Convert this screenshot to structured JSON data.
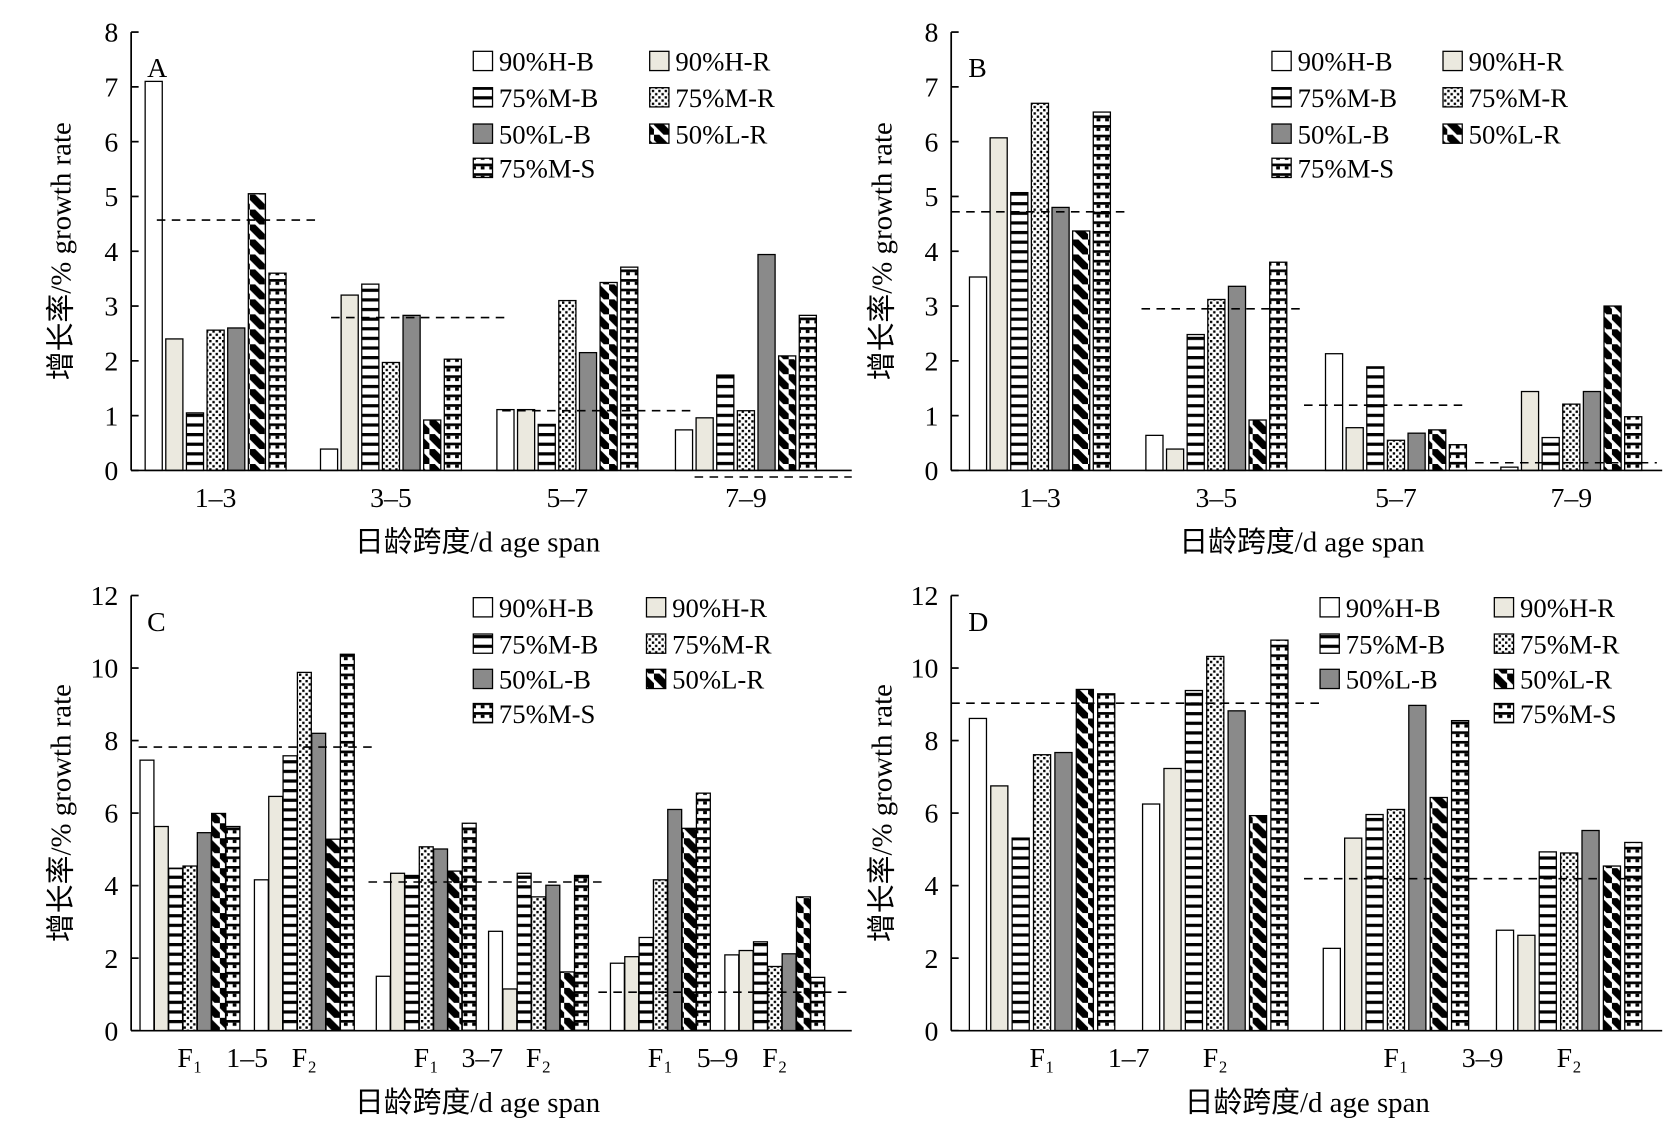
{
  "chart_data": [
    {
      "type": "bar",
      "label": "A",
      "categories": [
        "1–3",
        "3–5",
        "5–7",
        "7–9"
      ],
      "xlabel": "日龄跨度/d age span",
      "ylabel": "增长率/% growth rate",
      "ylim": [
        0,
        8
      ],
      "yticks": [
        0,
        1,
        2,
        3,
        4,
        5,
        6,
        7,
        8
      ],
      "legend": "top-right",
      "series": [
        {
          "name": "90%H-B",
          "values": [
            7.1,
            0.39,
            1.11,
            0.74
          ]
        },
        {
          "name": "90%H-R",
          "values": [
            2.4,
            3.2,
            1.11,
            0.96
          ]
        },
        {
          "name": "75%M-B",
          "values": [
            1.05,
            3.4,
            0.84,
            1.74
          ]
        },
        {
          "name": "75%M-R",
          "values": [
            2.56,
            1.97,
            3.1,
            1.09
          ]
        },
        {
          "name": "50%L-B",
          "values": [
            2.6,
            2.83,
            2.15,
            3.94
          ]
        },
        {
          "name": "50%L-R",
          "values": [
            5.05,
            0.92,
            3.43,
            2.09
          ]
        },
        {
          "name": "75%M-S",
          "values": [
            3.6,
            2.03,
            3.71,
            2.83
          ]
        }
      ],
      "reference_lines": [
        4.57,
        2.79,
        1.09,
        -0.12
      ]
    },
    {
      "type": "bar",
      "label": "B",
      "categories": [
        "1–3",
        "3–5",
        "5–7",
        "7–9"
      ],
      "xlabel": "日龄跨度/d age span",
      "ylabel": "增长率/% growth rate",
      "ylim": [
        0,
        8
      ],
      "yticks": [
        0,
        1,
        2,
        3,
        4,
        5,
        6,
        7,
        8
      ],
      "legend": "top-right",
      "series": [
        {
          "name": "90%H-B",
          "values": [
            3.53,
            0.64,
            2.13,
            0.06
          ]
        },
        {
          "name": "90%H-R",
          "values": [
            6.07,
            0.39,
            0.78,
            1.44
          ]
        },
        {
          "name": "75%M-B",
          "values": [
            5.07,
            2.48,
            1.89,
            0.6
          ]
        },
        {
          "name": "75%M-R",
          "values": [
            6.7,
            3.12,
            0.55,
            1.21
          ]
        },
        {
          "name": "50%L-B",
          "values": [
            4.8,
            3.36,
            0.68,
            1.44
          ]
        },
        {
          "name": "50%L-R",
          "values": [
            4.37,
            0.92,
            0.74,
            3.0
          ]
        },
        {
          "name": "75%M-S",
          "values": [
            6.54,
            3.8,
            0.47,
            0.98
          ]
        }
      ],
      "reference_lines": [
        4.72,
        2.95,
        1.19,
        0.14
      ]
    },
    {
      "type": "bar",
      "label": "C",
      "categories": [
        "F₁",
        "F₂",
        "F₁",
        "F₂",
        "F₁",
        "F₂"
      ],
      "group_labels": [
        "1–5",
        "3–7",
        "5–9"
      ],
      "xlabel": "日龄跨度/d age span",
      "ylabel": "增长率/% growth rate",
      "ylim": [
        0,
        12
      ],
      "yticks": [
        0,
        2,
        4,
        6,
        8,
        10,
        12
      ],
      "legend": "top-right",
      "series": [
        {
          "name": "90%H-B",
          "values": [
            7.46,
            4.16,
            1.5,
            2.74,
            1.86,
            2.09
          ]
        },
        {
          "name": "90%H-R",
          "values": [
            5.63,
            6.46,
            4.34,
            1.15,
            2.04,
            2.21
          ]
        },
        {
          "name": "75%M-B",
          "values": [
            4.48,
            7.58,
            4.28,
            4.34,
            2.57,
            2.45
          ]
        },
        {
          "name": "75%M-R",
          "values": [
            4.54,
            9.88,
            5.07,
            3.69,
            4.16,
            1.77
          ]
        },
        {
          "name": "50%L-B",
          "values": [
            5.46,
            8.2,
            5.01,
            4.01,
            6.1,
            2.12
          ]
        },
        {
          "name": "50%L-R",
          "values": [
            5.99,
            5.28,
            4.4,
            1.62,
            5.58,
            3.69
          ]
        },
        {
          "name": "75%M-S",
          "values": [
            5.63,
            10.38,
            5.72,
            4.28,
            6.55,
            1.47
          ]
        }
      ],
      "reference_lines": [
        7.82,
        4.1,
        1.06
      ]
    },
    {
      "type": "bar",
      "label": "D",
      "categories": [
        "F₁",
        "F₂",
        "F₁",
        "F₂"
      ],
      "group_labels": [
        "1–7",
        "3–9"
      ],
      "xlabel": "日龄跨度/d age span",
      "ylabel": "增长率/% growth rate",
      "ylim": [
        0,
        12
      ],
      "yticks": [
        0,
        2,
        4,
        6,
        8,
        10,
        12
      ],
      "legend": "top-right",
      "series": [
        {
          "name": "90%H-B",
          "values": [
            8.61,
            6.25,
            2.27,
            2.77
          ]
        },
        {
          "name": "90%H-R",
          "values": [
            6.75,
            7.23,
            5.31,
            2.63
          ]
        },
        {
          "name": "75%M-B",
          "values": [
            5.31,
            9.38,
            5.96,
            4.93
          ]
        },
        {
          "name": "75%M-R",
          "values": [
            7.61,
            10.32,
            6.1,
            4.9
          ]
        },
        {
          "name": "50%L-B",
          "values": [
            7.67,
            8.82,
            8.97,
            5.52
          ]
        },
        {
          "name": "50%L-R",
          "values": [
            9.41,
            5.93,
            6.43,
            4.54
          ]
        },
        {
          "name": "75%M-S",
          "values": [
            9.29,
            10.77,
            8.55,
            5.19
          ]
        }
      ],
      "reference_lines": [
        9.03,
        4.19
      ]
    }
  ]
}
